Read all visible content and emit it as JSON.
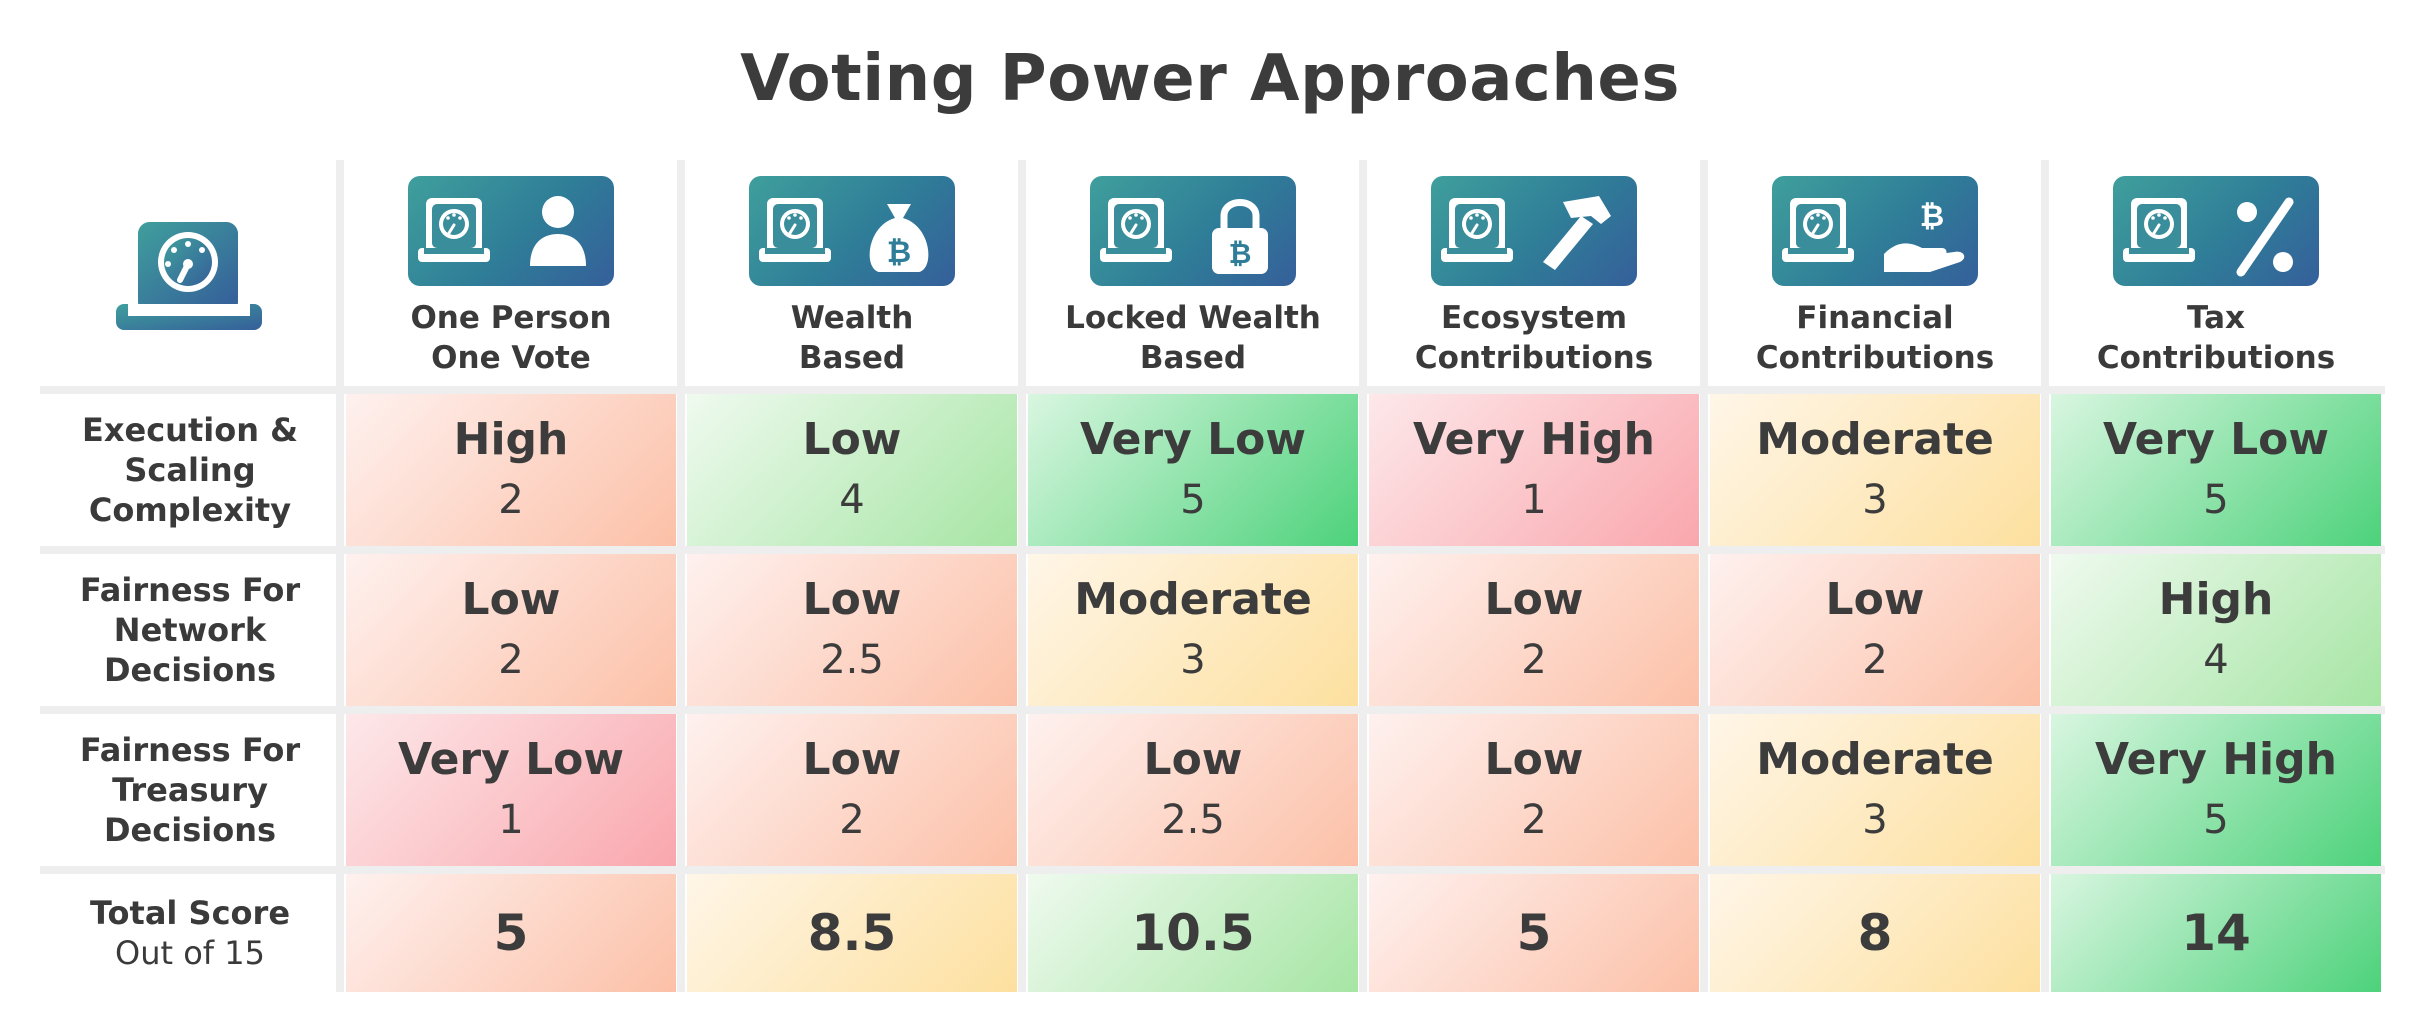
{
  "title": "Voting Power Approaches",
  "colors": {
    "very_low_score": "#f9a7ad",
    "low_score": "#fcc0a7",
    "moderate_score": "#fde09f",
    "high_score": "#a6e5a4",
    "very_high_score": "#4dd27b",
    "icon_tile_start": "#3f9f9c",
    "icon_tile_end": "#355f9a"
  },
  "corner_icon": "gauge-icon",
  "columns": [
    {
      "line1": "One Person",
      "line2": "One Vote",
      "icon": "person-icon"
    },
    {
      "line1": "Wealth",
      "line2": "Based",
      "icon": "bitcoin-money-bag-icon"
    },
    {
      "line1": "Locked Wealth",
      "line2": "Based",
      "icon": "bitcoin-padlock-icon"
    },
    {
      "line1": "Ecosystem",
      "line2": "Contributions",
      "icon": "hammer-icon"
    },
    {
      "line1": "Financial",
      "line2": "Contributions",
      "icon": "bitcoin-hand-icon"
    },
    {
      "line1": "Tax",
      "line2": "Contributions",
      "icon": "percent-icon"
    }
  ],
  "rows": [
    {
      "label": [
        "Execution &",
        "Scaling",
        "Complexity"
      ],
      "cells": [
        {
          "level": "High",
          "score": "2"
        },
        {
          "level": "Low",
          "score": "4"
        },
        {
          "level": "Very Low",
          "score": "5"
        },
        {
          "level": "Very High",
          "score": "1"
        },
        {
          "level": "Moderate",
          "score": "3"
        },
        {
          "level": "Very Low",
          "score": "5"
        }
      ]
    },
    {
      "label": [
        "Fairness For",
        "Network",
        "Decisions"
      ],
      "cells": [
        {
          "level": "Low",
          "score": "2"
        },
        {
          "level": "Low",
          "score": "2.5"
        },
        {
          "level": "Moderate",
          "score": "3"
        },
        {
          "level": "Low",
          "score": "2"
        },
        {
          "level": "Low",
          "score": "2"
        },
        {
          "level": "High",
          "score": "4"
        }
      ]
    },
    {
      "label": [
        "Fairness For",
        "Treasury",
        "Decisions"
      ],
      "cells": [
        {
          "level": "Very Low",
          "score": "1"
        },
        {
          "level": "Low",
          "score": "2"
        },
        {
          "level": "Low",
          "score": "2.5"
        },
        {
          "level": "Low",
          "score": "2"
        },
        {
          "level": "Moderate",
          "score": "3"
        },
        {
          "level": "Very High",
          "score": "5"
        }
      ]
    }
  ],
  "total": {
    "label": "Total Score",
    "sublabel": "Out of 15",
    "values": [
      "5",
      "8.5",
      "10.5",
      "5",
      "8",
      "14"
    ]
  }
}
